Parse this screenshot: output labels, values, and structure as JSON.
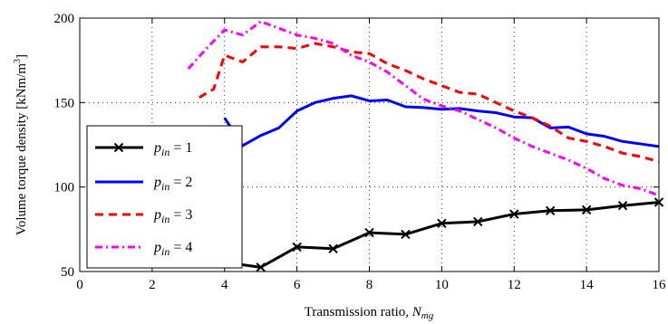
{
  "chart_data": {
    "type": "line",
    "xlabel": "Transmission ratio, N_mg",
    "xlabel_parts": {
      "main": "Transmission ratio, ",
      "var": "N",
      "sub": "mg"
    },
    "ylabel": "Volume torque density [kNm/m3]",
    "ylabel_parts": {
      "main": "Volume torque density [kNm/m",
      "sup": "3",
      "end": "]"
    },
    "xlim": [
      0,
      16
    ],
    "ylim": [
      50,
      200
    ],
    "xticks": [
      0,
      2,
      4,
      6,
      8,
      10,
      12,
      14,
      16
    ],
    "yticks": [
      50,
      100,
      150,
      200
    ],
    "grid": true,
    "grid_style": "dotted",
    "legend_position": "left-bottom",
    "series": [
      {
        "name": "p_in = 1",
        "label_parts": {
          "var": "p",
          "sub": "in",
          "eq": " = ",
          "num": "1"
        },
        "color": "#000000",
        "style": "solid-x-markers",
        "x": [
          4,
          5,
          6,
          7,
          8,
          9,
          10,
          11,
          12,
          13,
          14,
          15,
          16
        ],
        "y": [
          55.5,
          52.5,
          64.5,
          63.5,
          73,
          72,
          78.5,
          79.5,
          84,
          86,
          86.5,
          89,
          91
        ]
      },
      {
        "name": "p_in = 2",
        "label_parts": {
          "var": "p",
          "sub": "in",
          "eq": " = ",
          "num": "2"
        },
        "color": "#0000ff",
        "style": "solid",
        "x": [
          4,
          4.5,
          5,
          5.5,
          6,
          6.5,
          7,
          7.5,
          8,
          8.5,
          9,
          9.5,
          10,
          10.5,
          11,
          11.5,
          12,
          12.5,
          13,
          13.5,
          14,
          14.5,
          15,
          15.5,
          16
        ],
        "y": [
          141,
          124.5,
          130.5,
          135,
          145,
          150,
          152.5,
          154,
          151,
          151.5,
          147.5,
          147,
          146,
          146.5,
          145,
          144,
          141.5,
          141,
          135,
          135.5,
          131.5,
          130,
          127,
          125.5,
          124
        ]
      },
      {
        "name": "p_in = 3",
        "label_parts": {
          "var": "p",
          "sub": "in",
          "eq": " = ",
          "num": "3"
        },
        "color": "#ff0000",
        "style": "dashed",
        "x": [
          3.3,
          3.7,
          4,
          4.5,
          5,
          5.5,
          6,
          6.5,
          7,
          7.5,
          8,
          8.5,
          9,
          9.5,
          10,
          10.5,
          11,
          11.5,
          12,
          12.5,
          13,
          13.5,
          14,
          14.5,
          15,
          15.5,
          16
        ],
        "y": [
          153,
          158,
          178,
          174,
          183,
          183,
          182,
          185,
          183,
          180,
          179,
          173,
          169,
          164,
          160,
          156,
          155,
          150,
          145,
          141,
          136,
          129,
          127,
          124,
          120,
          118,
          115
        ]
      },
      {
        "name": "p_in = 4",
        "label_parts": {
          "var": "p",
          "sub": "in",
          "eq": " = ",
          "num": "4"
        },
        "color": "#ff00ff",
        "style": "dash-dot",
        "x": [
          3,
          3.5,
          4,
          4.5,
          5,
          5.5,
          6,
          6.5,
          7,
          7.5,
          8,
          8.5,
          9,
          9.5,
          10,
          10.5,
          11,
          11.5,
          12,
          12.5,
          13,
          13.5,
          14,
          14.5,
          15,
          15.5,
          16
        ],
        "y": [
          170,
          182,
          193,
          190,
          198,
          194,
          190,
          188,
          185,
          178,
          174,
          168,
          160,
          152,
          148,
          145,
          140,
          135,
          129,
          124,
          120,
          116,
          111,
          105,
          101,
          99,
          95
        ]
      }
    ]
  }
}
